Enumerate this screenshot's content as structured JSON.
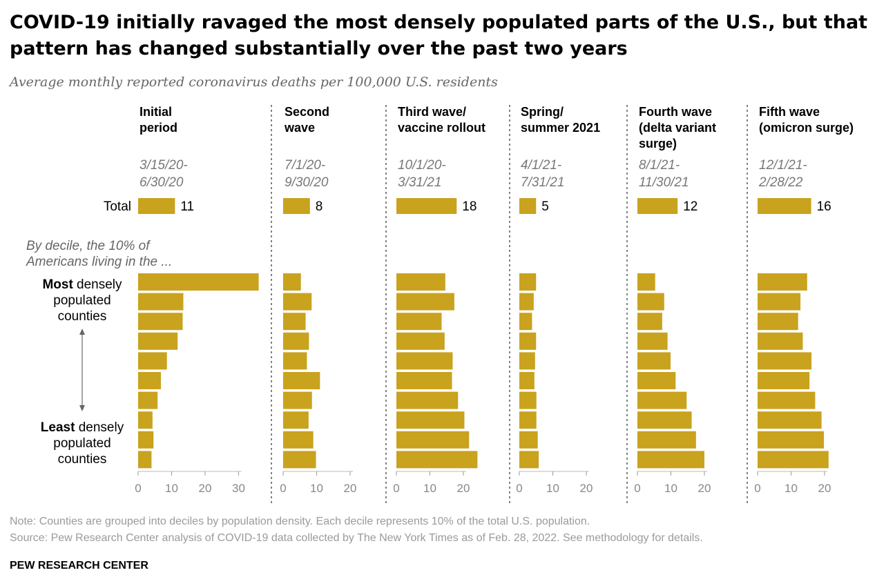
{
  "title": "COVID-19 initially ravaged the most densely populated parts of the U.S., but that pattern has changed substantially over the past two years",
  "subtitle": "Average monthly reported coronavirus deaths per 100,000 U.S. residents",
  "total_label": "Total",
  "decile_intro": [
    "By decile, the 10% of",
    "Americans living in the ..."
  ],
  "most_label": {
    "bold": "Most",
    "rest": " densely",
    "line2": "populated",
    "line3": "counties"
  },
  "least_label": {
    "bold": "Least",
    "rest": " densely",
    "line2": "populated",
    "line3": "counties"
  },
  "notes": {
    "note": "Note: Counties are grouped into deciles by population density. Each decile represents 10% of the total U.S. population.",
    "source": "Source: Pew Research Center analysis of COVID-19 data collected by The New York Times as of Feb. 28, 2022. See methodology for details.",
    "brand": "PEW RESEARCH CENTER"
  },
  "colors": {
    "bar": "#C9A21E",
    "divider": "#555555",
    "axis": "#999999",
    "tick_text": "#888888"
  },
  "chart_data": {
    "type": "bar",
    "orientation": "horizontal",
    "decile_order": "most densely populated to least densely populated",
    "panels": [
      {
        "name": [
          "Initial",
          "period"
        ],
        "dates": [
          "3/15/20-",
          "6/30/20"
        ],
        "total": 11,
        "values": [
          36,
          13.5,
          13.3,
          11.8,
          8.6,
          6.8,
          5.8,
          4.3,
          4.6,
          4.0
        ],
        "ticks": [
          0,
          10,
          20,
          30
        ]
      },
      {
        "name": [
          "Second",
          "wave"
        ],
        "dates": [
          "7/1/20-",
          "9/30/20"
        ],
        "total": 8,
        "values": [
          5.3,
          8.5,
          6.7,
          7.7,
          7.1,
          11.0,
          8.6,
          7.6,
          9.0,
          9.8
        ],
        "ticks": [
          0,
          10,
          20
        ]
      },
      {
        "name": [
          "Third wave/",
          "vaccine rollout"
        ],
        "dates": [
          "10/1/20-",
          "3/31/21"
        ],
        "total": 18,
        "values": [
          14.6,
          17.3,
          13.5,
          14.4,
          16.8,
          16.6,
          18.4,
          20.3,
          21.7,
          24.2
        ],
        "ticks": [
          0,
          10,
          20
        ]
      },
      {
        "name": [
          "Spring/",
          "summer 2021"
        ],
        "dates": [
          "4/1/21-",
          "7/31/21"
        ],
        "total": 5,
        "values": [
          5.0,
          4.3,
          3.8,
          5.0,
          4.7,
          4.5,
          5.1,
          5.1,
          5.5,
          5.8
        ],
        "ticks": [
          0,
          10,
          20
        ]
      },
      {
        "name": [
          "Fourth wave",
          "(delta variant",
          "surge)"
        ],
        "dates": [
          "8/1/21-",
          "11/30/21"
        ],
        "total": 12,
        "values": [
          5.3,
          8.0,
          7.4,
          9.0,
          9.9,
          11.4,
          14.7,
          16.2,
          17.5,
          20.0
        ],
        "ticks": [
          0,
          10,
          20
        ]
      },
      {
        "name": [
          "Fifth wave",
          "(omicron surge)"
        ],
        "dates": [
          "12/1/21-",
          "2/28/22"
        ],
        "total": 16,
        "values": [
          14.8,
          12.8,
          12.1,
          13.5,
          16.1,
          15.5,
          17.2,
          19.1,
          19.8,
          21.2
        ],
        "ticks": [
          0,
          10,
          20
        ]
      }
    ]
  }
}
